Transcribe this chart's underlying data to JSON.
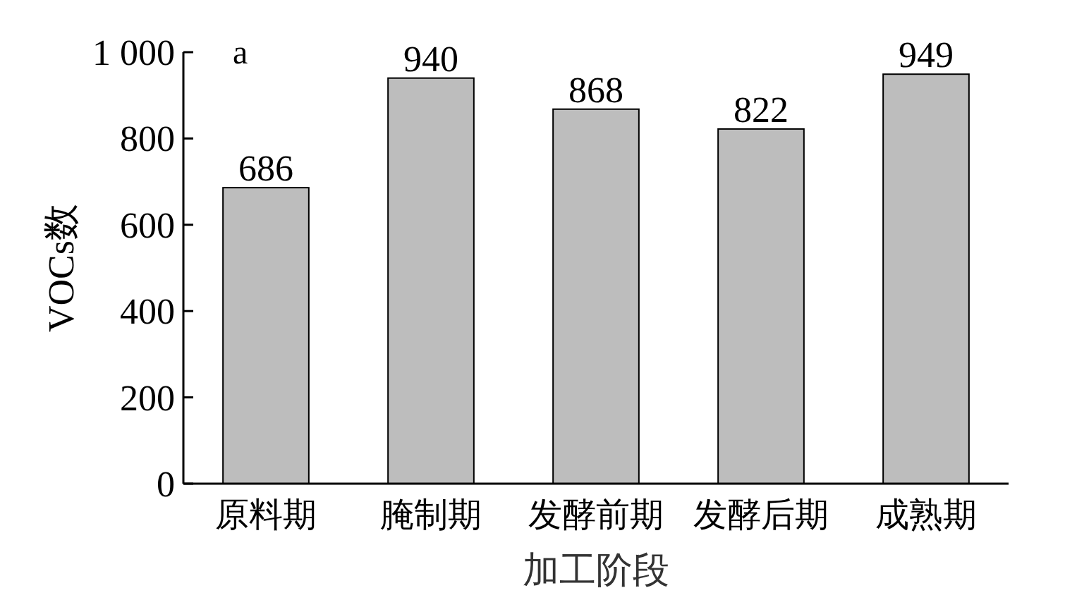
{
  "chart_data": {
    "type": "bar",
    "xlabel": "加工阶段",
    "ylabel": "VOCs数",
    "annotations": [
      "a"
    ],
    "categories": [
      "原料期",
      "腌制期",
      "发酵前期",
      "发酵后期",
      "成熟期"
    ],
    "values": [
      686,
      940,
      868,
      822,
      949
    ],
    "color": "#bdbdbd",
    "ylim": [
      0,
      1000
    ],
    "yticks": [
      0,
      200,
      400,
      600,
      800,
      {
        "value": 1000,
        "label": "1 000"
      }
    ],
    "data_labels": true,
    "grid": false
  }
}
